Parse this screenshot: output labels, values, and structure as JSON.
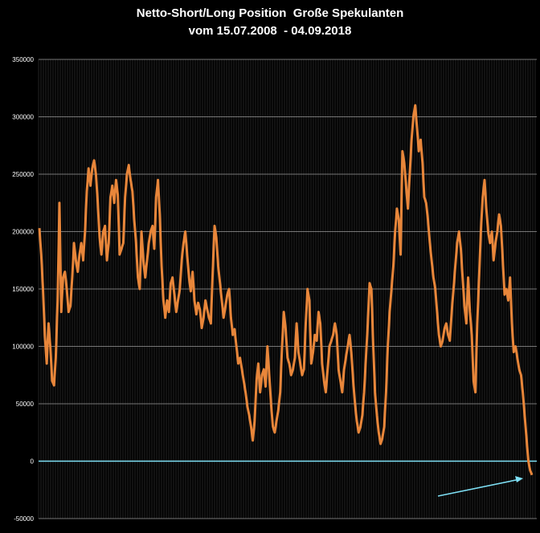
{
  "chart_data": {
    "type": "line",
    "title": "Netto-Short/Long Position  Große Spekulanten",
    "subtitle": "vom 15.07.2008  - 04.09.2018",
    "xlabel": "",
    "ylabel": "",
    "ylim": [
      -50000,
      350000
    ],
    "y_ticks": [
      350000,
      300000,
      250000,
      200000,
      150000,
      100000,
      50000,
      0,
      -50000
    ],
    "y_tick_labels": [
      "350000",
      "300000",
      "250000",
      "200000",
      "150000",
      "100000",
      "50000",
      "0",
      "-50000"
    ],
    "x_range": [
      "15.07.2008",
      "04.09.2018"
    ],
    "grid": true,
    "series": [
      {
        "name": "Netto-Short/Long Position",
        "color": "#e8863a",
        "values": [
          203000,
          180000,
          150000,
          110000,
          85000,
          120000,
          100000,
          70000,
          66000,
          90000,
          140000,
          225000,
          130000,
          160000,
          165000,
          150000,
          130000,
          135000,
          160000,
          190000,
          175000,
          165000,
          180000,
          190000,
          175000,
          200000,
          235000,
          255000,
          240000,
          255000,
          262000,
          250000,
          225000,
          195000,
          180000,
          200000,
          205000,
          175000,
          190000,
          230000,
          240000,
          225000,
          245000,
          232000,
          180000,
          185000,
          190000,
          230000,
          250000,
          258000,
          245000,
          235000,
          210000,
          190000,
          160000,
          150000,
          200000,
          175000,
          160000,
          175000,
          190000,
          200000,
          205000,
          185000,
          230000,
          245000,
          215000,
          170000,
          140000,
          125000,
          140000,
          130000,
          155000,
          160000,
          145000,
          130000,
          140000,
          150000,
          175000,
          190000,
          200000,
          180000,
          160000,
          148000,
          165000,
          140000,
          128000,
          138000,
          132000,
          116000,
          125000,
          140000,
          132000,
          125000,
          120000,
          165000,
          205000,
          195000,
          170000,
          155000,
          140000,
          125000,
          135000,
          145000,
          150000,
          125000,
          110000,
          115000,
          100000,
          85000,
          90000,
          80000,
          70000,
          60000,
          48000,
          40000,
          30000,
          18000,
          35000,
          70000,
          85000,
          60000,
          75000,
          80000,
          65000,
          100000,
          75000,
          50000,
          30000,
          25000,
          35000,
          45000,
          60000,
          100000,
          130000,
          115000,
          90000,
          85000,
          75000,
          80000,
          90000,
          120000,
          95000,
          85000,
          75000,
          80000,
          120000,
          150000,
          140000,
          85000,
          95000,
          110000,
          105000,
          130000,
          120000,
          85000,
          70000,
          60000,
          80000,
          100000,
          105000,
          110000,
          120000,
          110000,
          80000,
          70000,
          60000,
          80000,
          90000,
          100000,
          110000,
          95000,
          70000,
          50000,
          35000,
          25000,
          30000,
          40000,
          60000,
          90000,
          120000,
          155000,
          150000,
          100000,
          60000,
          40000,
          25000,
          15000,
          20000,
          30000,
          60000,
          100000,
          130000,
          150000,
          170000,
          200000,
          220000,
          210000,
          180000,
          270000,
          260000,
          240000,
          220000,
          250000,
          280000,
          300000,
          310000,
          290000,
          270000,
          280000,
          260000,
          230000,
          225000,
          210000,
          190000,
          175000,
          160000,
          150000,
          130000,
          110000,
          100000,
          105000,
          115000,
          120000,
          110000,
          105000,
          130000,
          150000,
          170000,
          190000,
          200000,
          185000,
          160000,
          135000,
          120000,
          160000,
          130000,
          110000,
          70000,
          60000,
          120000,
          160000,
          200000,
          230000,
          245000,
          220000,
          200000,
          190000,
          200000,
          175000,
          190000,
          200000,
          215000,
          205000,
          175000,
          145000,
          150000,
          140000,
          160000,
          120000,
          95000,
          100000,
          90000,
          80000,
          75000,
          60000,
          40000,
          20000,
          0,
          -8000,
          -12000
        ],
        "end_annotation": "arrow"
      }
    ],
    "zero_line_color": "#7ee0f5",
    "arrow_color": "#7ee0f5"
  }
}
